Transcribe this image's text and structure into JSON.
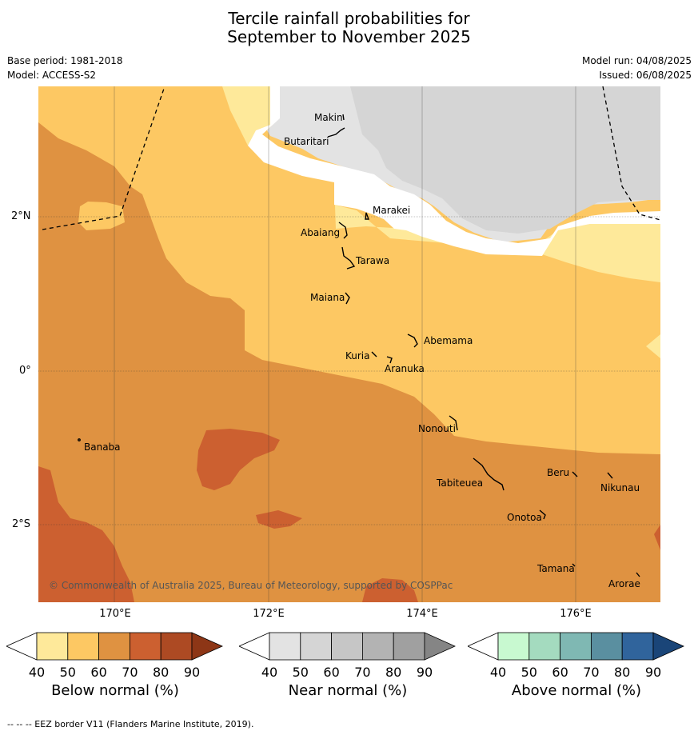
{
  "header": {
    "title_line1": "Tercile rainfall probabilities for",
    "title_line2": "September to November 2025",
    "base_period": "Base period: 1981-2018",
    "model": "Model: ACCESS-S2",
    "model_run": "Model run: 04/08/2025",
    "issued": "Issued: 06/08/2025"
  },
  "map": {
    "lat_labels": [
      "2°N",
      "0°",
      "2°S"
    ],
    "lon_labels": [
      "170°E",
      "172°E",
      "174°E",
      "176°E"
    ],
    "islands": [
      "Makin",
      "Butaritari",
      "Marakei",
      "Abaiang",
      "Tarawa",
      "Maiana",
      "Abemama",
      "Kuria",
      "Aranuka",
      "Nonouti",
      "Banaba",
      "Beru",
      "Tabiteuea",
      "Nikunau",
      "Onotoa",
      "Tamana",
      "Arorae"
    ],
    "copyright": "© Commonwealth of Australia 2025, Bureau of Meteorology, supported by COSPPac"
  },
  "colorbars": [
    {
      "label": "Below normal (%)",
      "ticks": [
        "40",
        "50",
        "60",
        "70",
        "80",
        "90"
      ],
      "colors": [
        "#ffffff",
        "#fee99a",
        "#fdc863",
        "#df9241",
        "#cc6030",
        "#ad4a23",
        "#8d3616"
      ]
    },
    {
      "label": "Near normal (%)",
      "ticks": [
        "40",
        "50",
        "60",
        "70",
        "80",
        "90"
      ],
      "colors": [
        "#ffffff",
        "#e3e3e3",
        "#d5d5d5",
        "#c6c6c6",
        "#b3b3b3",
        "#a0a0a0",
        "#858585"
      ]
    },
    {
      "label": "Above normal (%)",
      "ticks": [
        "40",
        "50",
        "60",
        "70",
        "80",
        "90"
      ],
      "colors": [
        "#ffffff",
        "#c8f9d0",
        "#a4dbbf",
        "#7fb8b3",
        "#5a8fa0",
        "#30649c",
        "#1a4578"
      ]
    }
  ],
  "footnote": "-- -- -- EEZ border V11 (Flanders Marine Institute, 2019)."
}
